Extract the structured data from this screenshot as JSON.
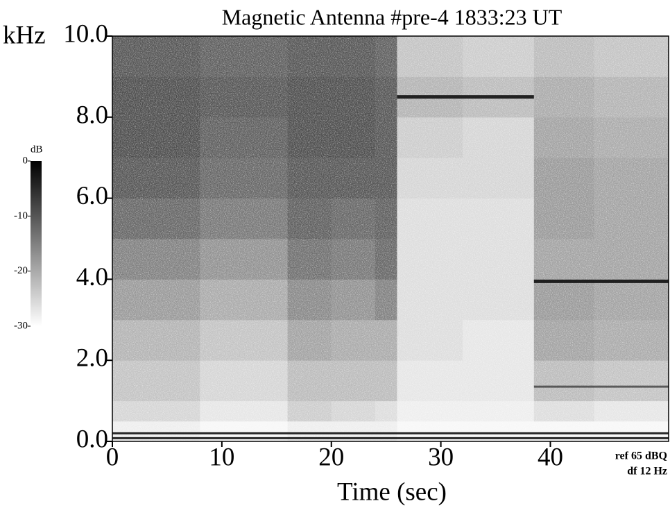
{
  "chart_data": {
    "type": "spectrogram",
    "title": "Magnetic Antenna #pre-4   1833:23 UT",
    "x_label": "Time (sec)",
    "y_label": "kHz",
    "colorbar_label": "dB",
    "annotations": [
      "ref 65 dBQ",
      "df 12 Hz"
    ],
    "xlim": [
      0,
      50.8
    ],
    "ylim": [
      0,
      10
    ],
    "xticks": [
      0,
      10,
      20,
      30,
      40
    ],
    "yticks": [
      {
        "value": 0,
        "label": "0.0"
      },
      {
        "value": 2,
        "label": "2.0"
      },
      {
        "value": 4,
        "label": "4.0"
      },
      {
        "value": 6,
        "label": "6.0"
      },
      {
        "value": 8,
        "label": "8.0"
      },
      {
        "value": 10,
        "label": "10.0"
      }
    ],
    "clim": [
      -30,
      0
    ],
    "cticks": [
      0,
      -10,
      -20,
      -30
    ],
    "x_edges": [
      0,
      4,
      8,
      12,
      16,
      20,
      24,
      26,
      32,
      38.5,
      44,
      50.8
    ],
    "y_edges": [
      0,
      0.5,
      1,
      2,
      3,
      4,
      5,
      6,
      7,
      8,
      9,
      10
    ],
    "z": [
      [
        -28,
        -28,
        -29,
        -29,
        -28,
        -28,
        -28,
        -29,
        -29,
        -29,
        -29
      ],
      [
        -25,
        -25,
        -27,
        -27,
        -24,
        -25,
        -26,
        -28,
        -28,
        -26,
        -27
      ],
      [
        -23,
        -23,
        -25,
        -25,
        -22,
        -22,
        -22,
        -27,
        -27,
        -22,
        -23
      ],
      [
        -21,
        -21,
        -23,
        -23,
        -19,
        -20,
        -20,
        -26,
        -27,
        -19,
        -20
      ],
      [
        -18,
        -18,
        -20,
        -20,
        -16,
        -17,
        -15,
        -26,
        -26,
        -18,
        -19
      ],
      [
        -15,
        -15,
        -17,
        -17,
        -13,
        -14,
        -12,
        -26,
        -26,
        -19,
        -19
      ],
      [
        -12,
        -12,
        -14,
        -14,
        -11,
        -12,
        -11,
        -26,
        -26,
        -18,
        -19
      ],
      [
        -10,
        -10,
        -12,
        -12,
        -10,
        -10,
        -10,
        -25,
        -25,
        -18,
        -19
      ],
      [
        -9,
        -9,
        -11,
        -11,
        -9,
        -9,
        -10,
        -24,
        -25,
        -19,
        -20
      ],
      [
        -9,
        -9,
        -10,
        -10,
        -9,
        -9,
        -10,
        -21,
        -22,
        -20,
        -21
      ],
      [
        -10,
        -10,
        -11,
        -11,
        -10,
        -10,
        -11,
        -23,
        -24,
        -22,
        -23
      ]
    ],
    "features": [
      {
        "x": [
          26,
          38.5
        ],
        "y": 8.5
      },
      {
        "x": [
          38.5,
          50.8
        ],
        "y": 3.95
      },
      {
        "x": [
          38.5,
          50.8
        ],
        "y": 1.35
      },
      {
        "x": [
          0,
          50.8
        ],
        "y": 0.2
      },
      {
        "x": [
          0,
          50.8
        ],
        "y": 0.08
      }
    ]
  }
}
